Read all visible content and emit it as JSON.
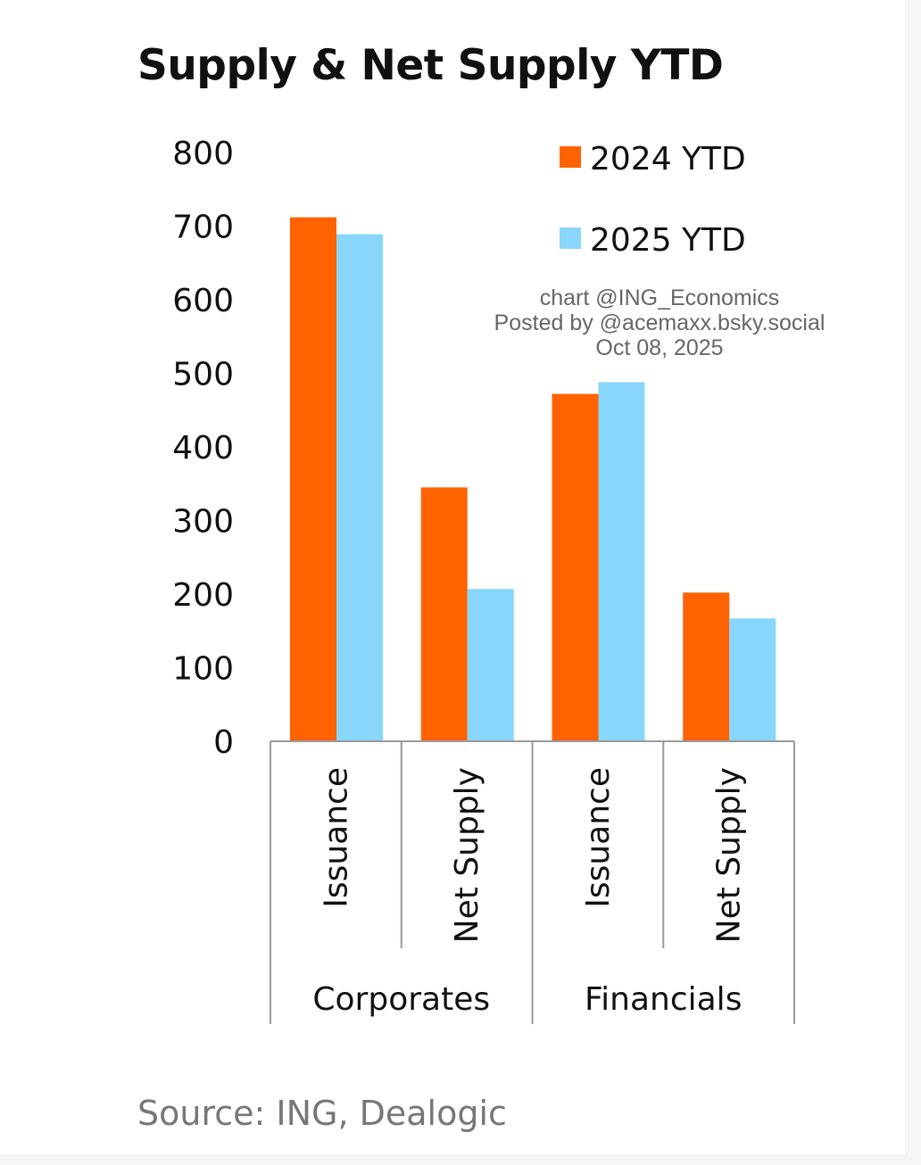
{
  "colors": {
    "series_2024": "#ff6200",
    "series_2025": "#89d6fd",
    "axis": "#9a9a9a",
    "title": "#111111",
    "source": "#777777"
  },
  "watermark": {
    "line1": "chart @ING_Economics",
    "line2": "Posted by @acemaxx.bsky.social",
    "line3": "Oct 08, 2025"
  },
  "chart_data": {
    "type": "bar",
    "title": "Supply & Net Supply YTD",
    "source": "Source: ING, Dealogic",
    "xlabel": "",
    "ylabel": "",
    "ylim": [
      0,
      800
    ],
    "yticks": [
      0,
      100,
      200,
      300,
      400,
      500,
      600,
      700,
      800
    ],
    "grid": false,
    "legend_position": "top-right",
    "categories": [
      "Issuance",
      "Net Supply",
      "Issuance",
      "Net Supply"
    ],
    "groups": [
      {
        "label": "Corporates",
        "span": [
          0,
          1
        ]
      },
      {
        "label": "Financials",
        "span": [
          2,
          3
        ]
      }
    ],
    "series": [
      {
        "name": "2024 YTD",
        "values": [
          712,
          345,
          472,
          202
        ]
      },
      {
        "name": "2025 YTD",
        "values": [
          689,
          207,
          488,
          167
        ]
      }
    ]
  }
}
